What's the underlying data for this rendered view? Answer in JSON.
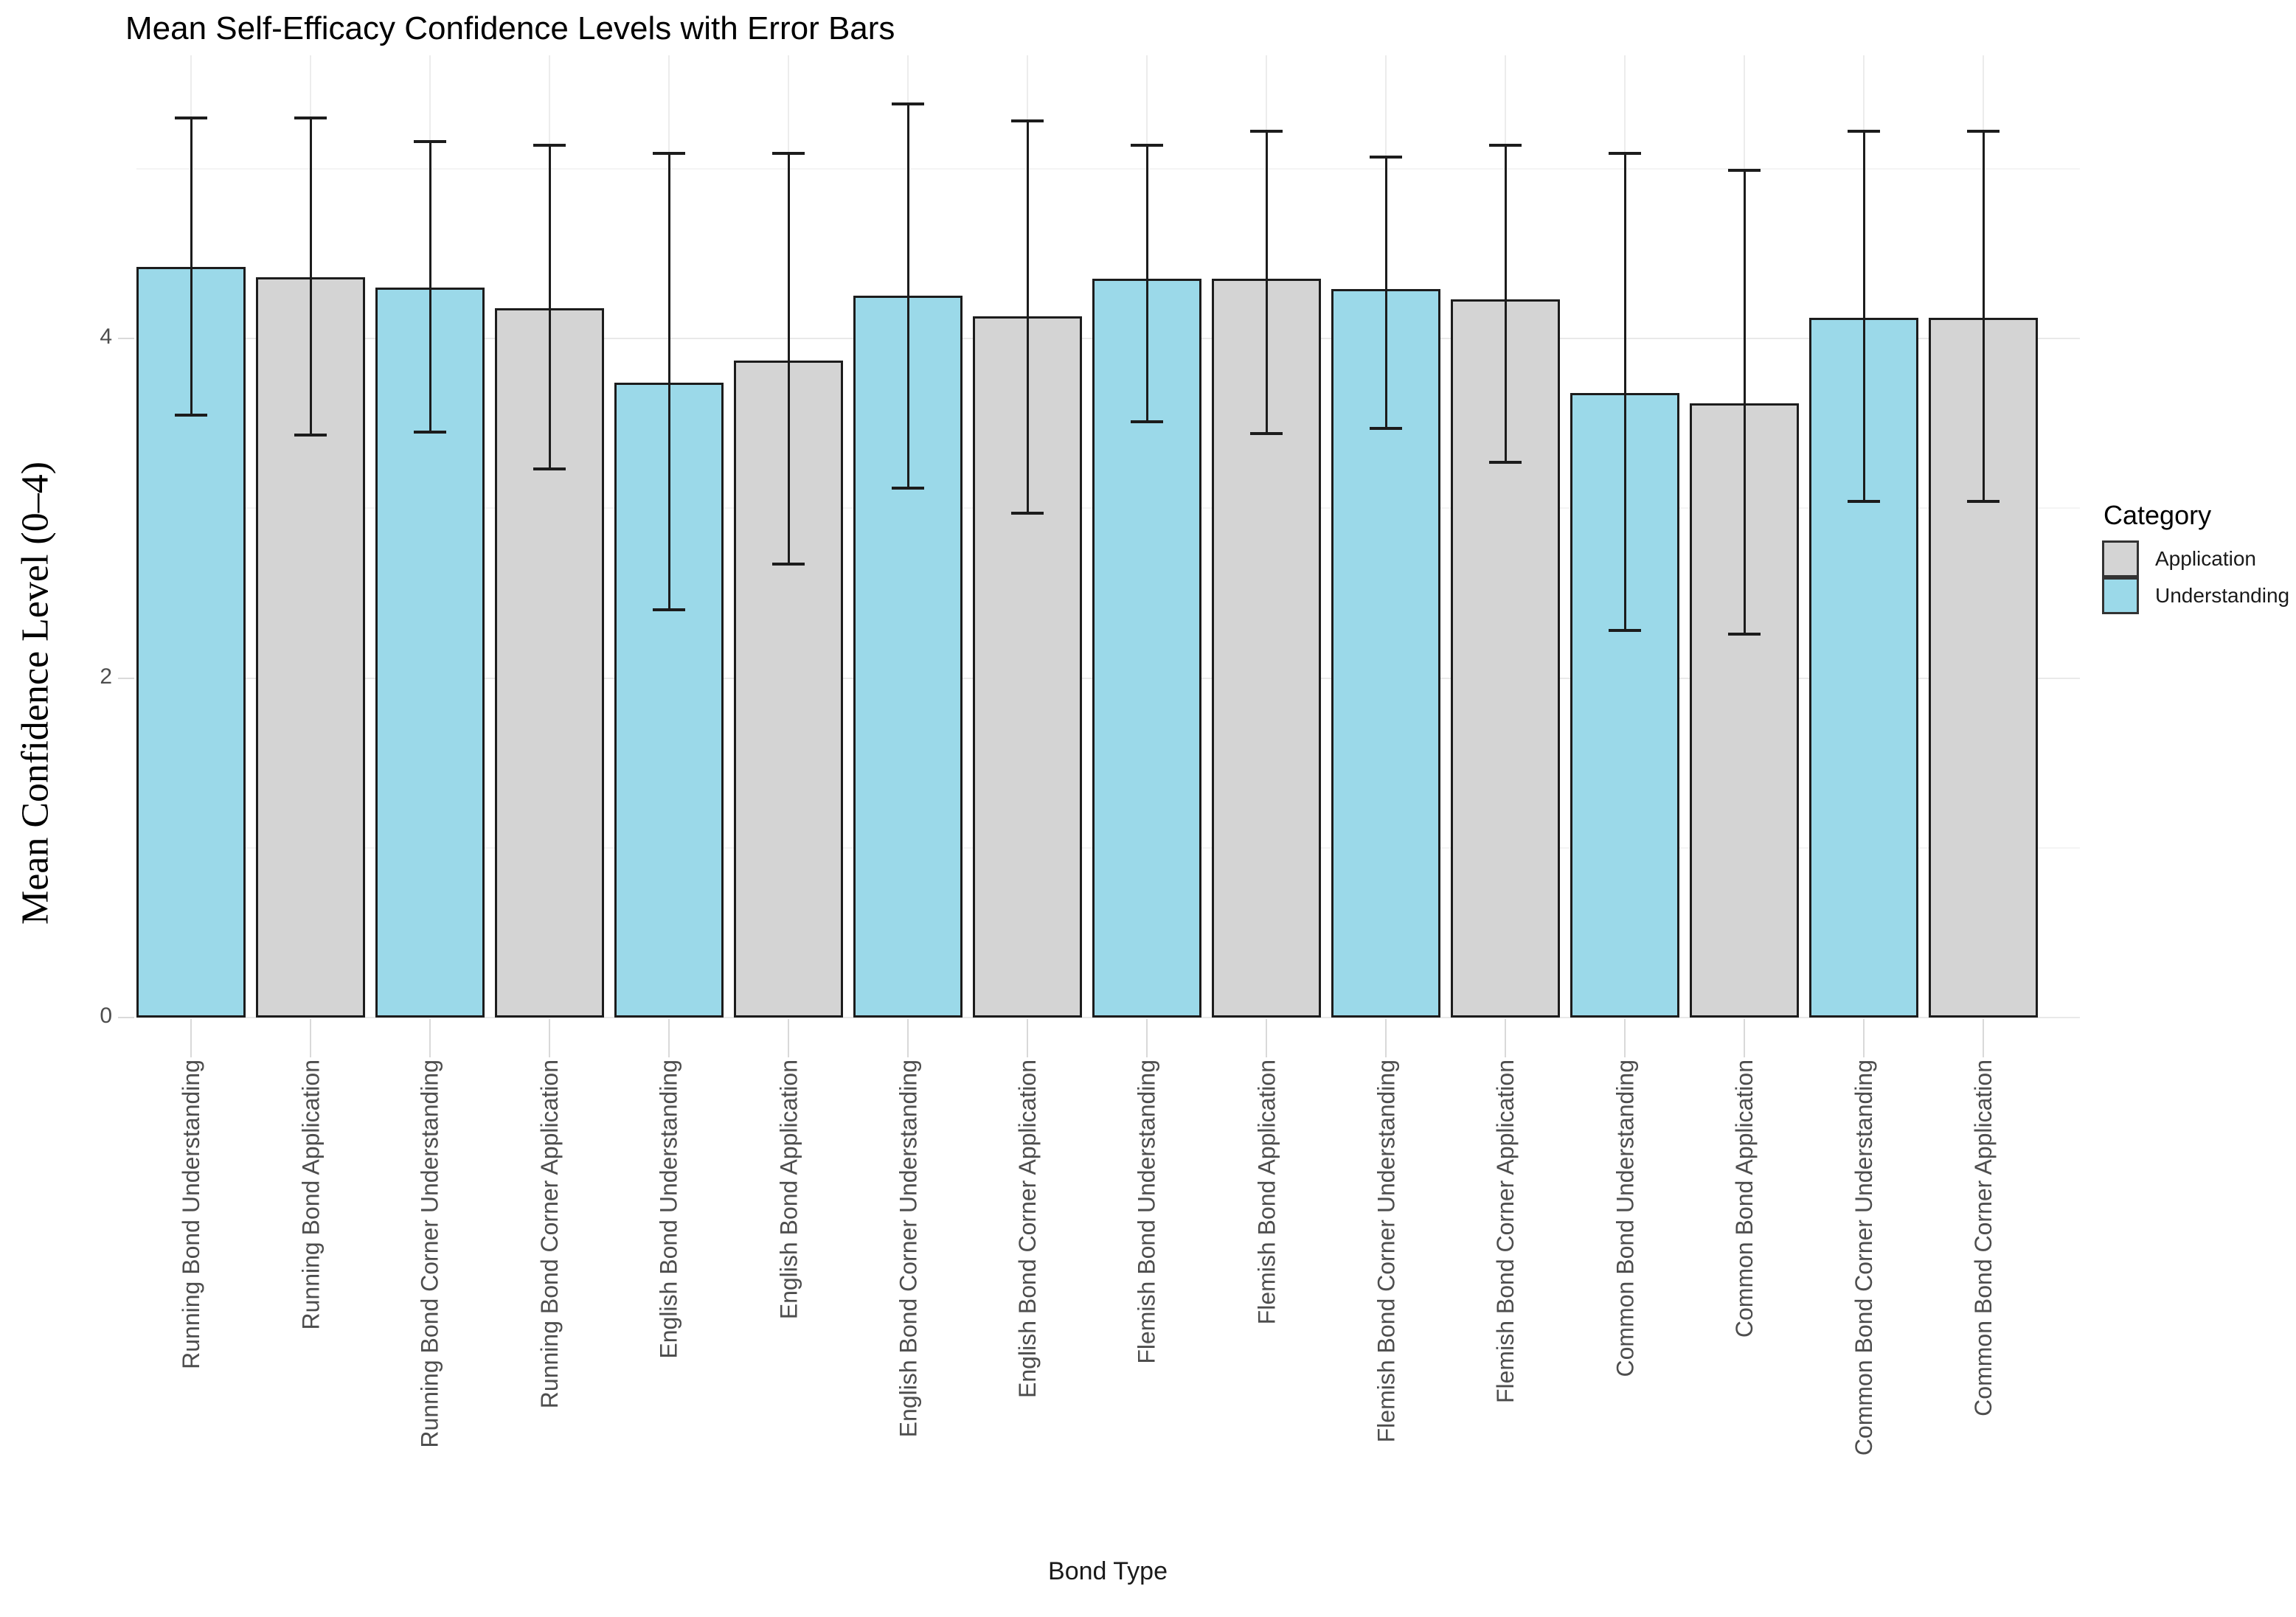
{
  "chart": {
    "title": "Mean Self-Efficacy Confidence Levels with Error Bars",
    "xlabel": "Bond Type",
    "ylabel": "Mean Confidence Level (0–4)"
  },
  "legend": {
    "title": "Category",
    "items": [
      {
        "label": "Application",
        "color": "#D4D4D4"
      },
      {
        "label": "Understanding",
        "color": "#9BD9E9"
      }
    ]
  },
  "colors": {
    "understanding": "#9BD9E9",
    "application": "#D4D4D4",
    "bar_border": "#1C1C1C",
    "error_bar": "#1C1C1C",
    "grid_major": "#E9E9E9",
    "grid_minor": "#F4F4F4",
    "grid_vertical": "#ECECEC",
    "tick_label": "#4D4D4D",
    "title": "#000000"
  },
  "chart_data": {
    "type": "bar",
    "title": "Mean Self-Efficacy Confidence Levels with Error Bars",
    "xlabel": "Bond Type",
    "ylabel": "Mean Confidence Level (0–4)",
    "ylim": [
      0,
      5.67
    ],
    "yticks": [
      0,
      2,
      4
    ],
    "minor_gridlines": [
      1,
      3,
      5
    ],
    "grid": true,
    "legend_position": "right",
    "categories": [
      "Running Bond Understanding",
      "Running Bond Application",
      "Running Bond Corner Understanding",
      "Running Bond Corner Application",
      "English Bond Understanding",
      "English Bond Application",
      "English Bond Corner Understanding",
      "English Bond Corner Application",
      "Flemish Bond Understanding",
      "Flemish Bond Application",
      "Flemish Bond Corner Understanding",
      "Flemish Bond Corner Application",
      "Common Bond Understanding",
      "Common Bond Application",
      "Common Bond Corner Understanding",
      "Common Bond Corner Application"
    ],
    "bar_types": [
      "Understanding",
      "Application",
      "Understanding",
      "Application",
      "Understanding",
      "Application",
      "Understanding",
      "Application",
      "Understanding",
      "Application",
      "Understanding",
      "Application",
      "Understanding",
      "Application",
      "Understanding",
      "Application"
    ],
    "series": [
      {
        "name": "Mean Confidence Level",
        "values": [
          4.42,
          4.36,
          4.3,
          4.18,
          3.74,
          3.87,
          4.25,
          4.13,
          4.35,
          4.35,
          4.29,
          4.23,
          3.68,
          3.62,
          4.12,
          4.12
        ],
        "error_low": [
          3.55,
          3.43,
          3.45,
          3.23,
          2.4,
          2.67,
          3.12,
          2.97,
          3.51,
          3.44,
          3.47,
          3.27,
          2.28,
          2.26,
          3.04,
          3.04
        ],
        "error_high": [
          5.3,
          5.3,
          5.16,
          5.14,
          5.09,
          5.09,
          5.38,
          5.28,
          5.14,
          5.22,
          5.07,
          5.14,
          5.09,
          4.99,
          5.22,
          5.22
        ]
      }
    ]
  }
}
